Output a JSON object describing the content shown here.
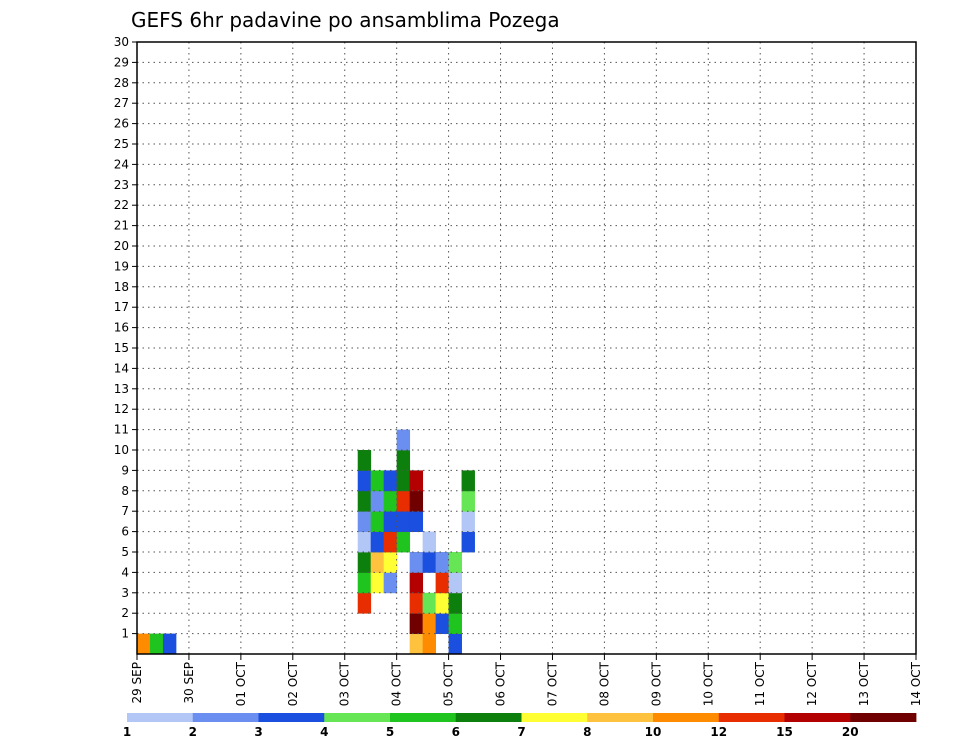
{
  "chart_data": {
    "type": "heatmap",
    "title": "GEFS 6hr padavine po ansamblima Pozega",
    "xlabel": "",
    "ylabel": "",
    "x_ticks": [
      "29 SEP",
      "30 SEP",
      "01 OCT",
      "02 OCT",
      "03 OCT",
      "04 OCT",
      "05 OCT",
      "06 OCT",
      "07 OCT",
      "08 OCT",
      "09 OCT",
      "10 OCT",
      "11 OCT",
      "12 OCT",
      "13 OCT",
      "14 OCT"
    ],
    "x_range": [
      "29 SEP 00Z",
      "14 OCT 00Z"
    ],
    "time_step_hours": 6,
    "y_range": [
      0,
      30
    ],
    "y_ticks": [
      1,
      2,
      3,
      4,
      5,
      6,
      7,
      8,
      9,
      10,
      11,
      12,
      13,
      14,
      15,
      16,
      17,
      18,
      19,
      20,
      21,
      22,
      23,
      24,
      25,
      26,
      27,
      28,
      29,
      30
    ],
    "grid": true,
    "colorbar": {
      "levels": [
        1,
        2,
        3,
        4,
        5,
        6,
        7,
        8,
        10,
        12,
        15,
        20
      ],
      "labels": [
        "1",
        "2",
        "3",
        "4",
        "5",
        "6",
        "7",
        "8",
        "10",
        "12",
        "15",
        "20"
      ],
      "colors": [
        "#b3c7f7",
        "#6a8ff0",
        "#1a4fdf",
        "#66e655",
        "#1fc41f",
        "#0d7f0d",
        "#ffff33",
        "#ffc23f",
        "#ff8c00",
        "#e82e00",
        "#b30000",
        "#700000"
      ]
    },
    "cells": [
      [
        "29 SEP 00Z",
        0,
        8
      ],
      [
        "29 SEP 06Z",
        0,
        4
      ],
      [
        "29 SEP 12Z",
        0,
        2
      ],
      [
        "03 OCT 06Z",
        2,
        9
      ],
      [
        "03 OCT 06Z",
        3,
        4
      ],
      [
        "03 OCT 06Z",
        4,
        5
      ],
      [
        "03 OCT 06Z",
        5,
        0
      ],
      [
        "03 OCT 06Z",
        6,
        1
      ],
      [
        "03 OCT 06Z",
        7,
        5
      ],
      [
        "03 OCT 06Z",
        8,
        2
      ],
      [
        "03 OCT 06Z",
        9,
        5
      ],
      [
        "03 OCT 12Z",
        3,
        6
      ],
      [
        "03 OCT 12Z",
        4,
        7
      ],
      [
        "03 OCT 12Z",
        5,
        2
      ],
      [
        "03 OCT 12Z",
        6,
        4
      ],
      [
        "03 OCT 12Z",
        7,
        1
      ],
      [
        "03 OCT 12Z",
        8,
        4
      ],
      [
        "03 OCT 18Z",
        3,
        1
      ],
      [
        "03 OCT 18Z",
        4,
        6
      ],
      [
        "03 OCT 18Z",
        5,
        9
      ],
      [
        "03 OCT 18Z",
        6,
        2
      ],
      [
        "03 OCT 18Z",
        7,
        4
      ],
      [
        "03 OCT 18Z",
        8,
        2
      ],
      [
        "04 OCT 00Z",
        5,
        4
      ],
      [
        "04 OCT 00Z",
        6,
        2
      ],
      [
        "04 OCT 00Z",
        7,
        9
      ],
      [
        "04 OCT 00Z",
        8,
        5
      ],
      [
        "04 OCT 00Z",
        9,
        5
      ],
      [
        "04 OCT 00Z",
        10,
        1
      ],
      [
        "04 OCT 06Z",
        0,
        7
      ],
      [
        "04 OCT 06Z",
        1,
        11
      ],
      [
        "04 OCT 06Z",
        2,
        9
      ],
      [
        "04 OCT 06Z",
        3,
        10
      ],
      [
        "04 OCT 06Z",
        4,
        1
      ],
      [
        "04 OCT 06Z",
        6,
        2
      ],
      [
        "04 OCT 06Z",
        7,
        11
      ],
      [
        "04 OCT 06Z",
        8,
        10
      ],
      [
        "04 OCT 12Z",
        0,
        8
      ],
      [
        "04 OCT 12Z",
        1,
        8
      ],
      [
        "04 OCT 12Z",
        2,
        3
      ],
      [
        "04 OCT 12Z",
        4,
        2
      ],
      [
        "04 OCT 12Z",
        5,
        0
      ],
      [
        "04 OCT 18Z",
        1,
        2
      ],
      [
        "04 OCT 18Z",
        2,
        6
      ],
      [
        "04 OCT 18Z",
        3,
        9
      ],
      [
        "04 OCT 18Z",
        4,
        1
      ],
      [
        "05 OCT 00Z",
        0,
        2
      ],
      [
        "05 OCT 00Z",
        1,
        4
      ],
      [
        "05 OCT 00Z",
        2,
        5
      ],
      [
        "05 OCT 00Z",
        3,
        0
      ],
      [
        "05 OCT 00Z",
        4,
        3
      ],
      [
        "05 OCT 06Z",
        5,
        2
      ],
      [
        "05 OCT 06Z",
        6,
        0
      ],
      [
        "05 OCT 06Z",
        7,
        3
      ],
      [
        "05 OCT 06Z",
        8,
        5
      ]
    ]
  }
}
